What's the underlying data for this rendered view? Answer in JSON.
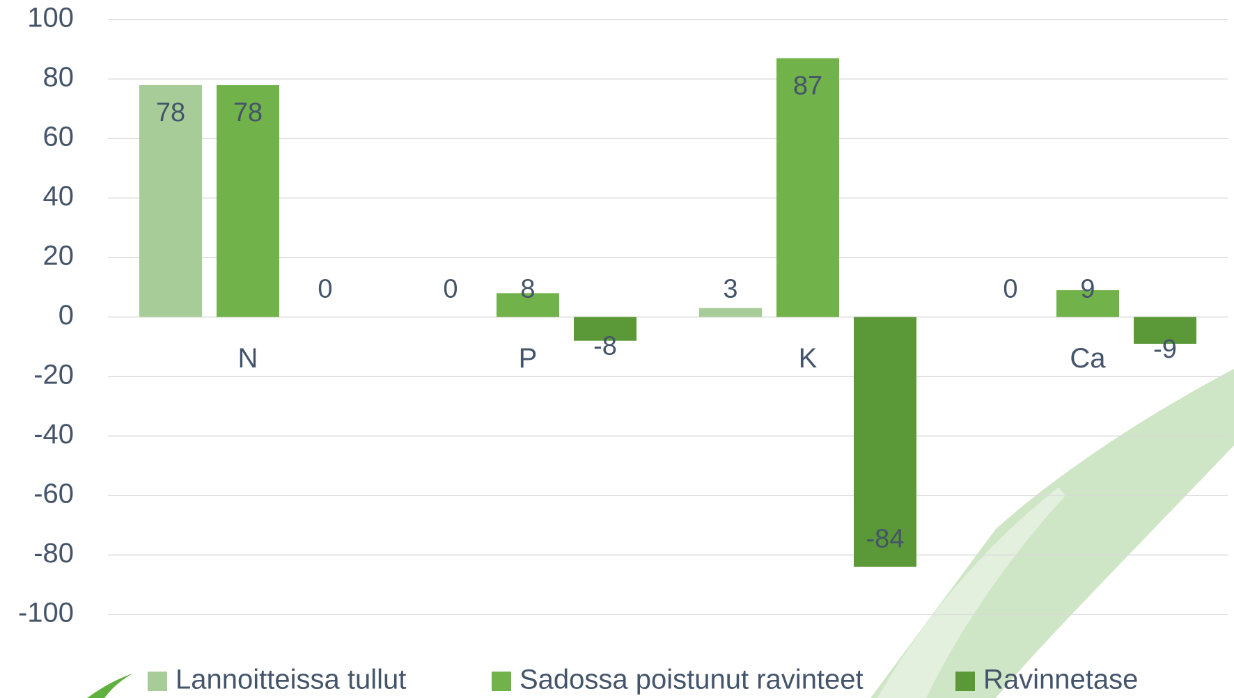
{
  "chart_data": {
    "type": "bar",
    "categories": [
      "N",
      "P",
      "K",
      "Ca"
    ],
    "series": [
      {
        "name": "Lannoitteissa tullut",
        "color": "#a8cc98",
        "values": [
          78,
          0,
          3,
          0
        ]
      },
      {
        "name": "Sadossa poistunut ravinteet",
        "color": "#72b24a",
        "values": [
          78,
          8,
          87,
          9
        ]
      },
      {
        "name": "Ravinnetase",
        "color": "#5a9838",
        "values": [
          0,
          -8,
          -84,
          -9
        ]
      }
    ],
    "ylim": [
      -100,
      100
    ],
    "yticks": [
      -100,
      -80,
      -60,
      -40,
      -20,
      0,
      20,
      40,
      60,
      80,
      100
    ],
    "grid": true,
    "legend": "bottom"
  }
}
